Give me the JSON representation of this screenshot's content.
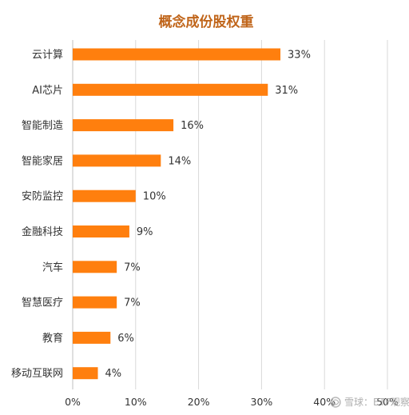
{
  "chart_data": {
    "type": "bar",
    "orientation": "horizontal",
    "title": "概念成份股权重",
    "xlabel": "",
    "ylabel": "",
    "categories": [
      "云计算",
      "AI芯片",
      "智能制造",
      "智能家居",
      "安防监控",
      "金融科技",
      "汽车",
      "智慧医疗",
      "教育",
      "移动互联网"
    ],
    "values": [
      33,
      31,
      16,
      14,
      10,
      9,
      7,
      7,
      6,
      4
    ],
    "value_labels": [
      "33%",
      "31%",
      "16%",
      "14%",
      "10%",
      "9%",
      "7%",
      "7%",
      "6%",
      "4%"
    ],
    "xlim": [
      0,
      50
    ],
    "x_ticks": [
      0,
      10,
      20,
      30,
      40,
      50
    ],
    "x_tick_labels": [
      "0%",
      "10%",
      "20%",
      "30%",
      "40%",
      "50%"
    ],
    "grid": true,
    "legend": "none"
  },
  "watermark": {
    "text": "雪球：ETF观察"
  },
  "colors": {
    "bar": "#ff7f0e",
    "title": "#c0651a",
    "text": "#333333",
    "grid": "#d9d9d9",
    "axis": "#bfbfbf"
  }
}
